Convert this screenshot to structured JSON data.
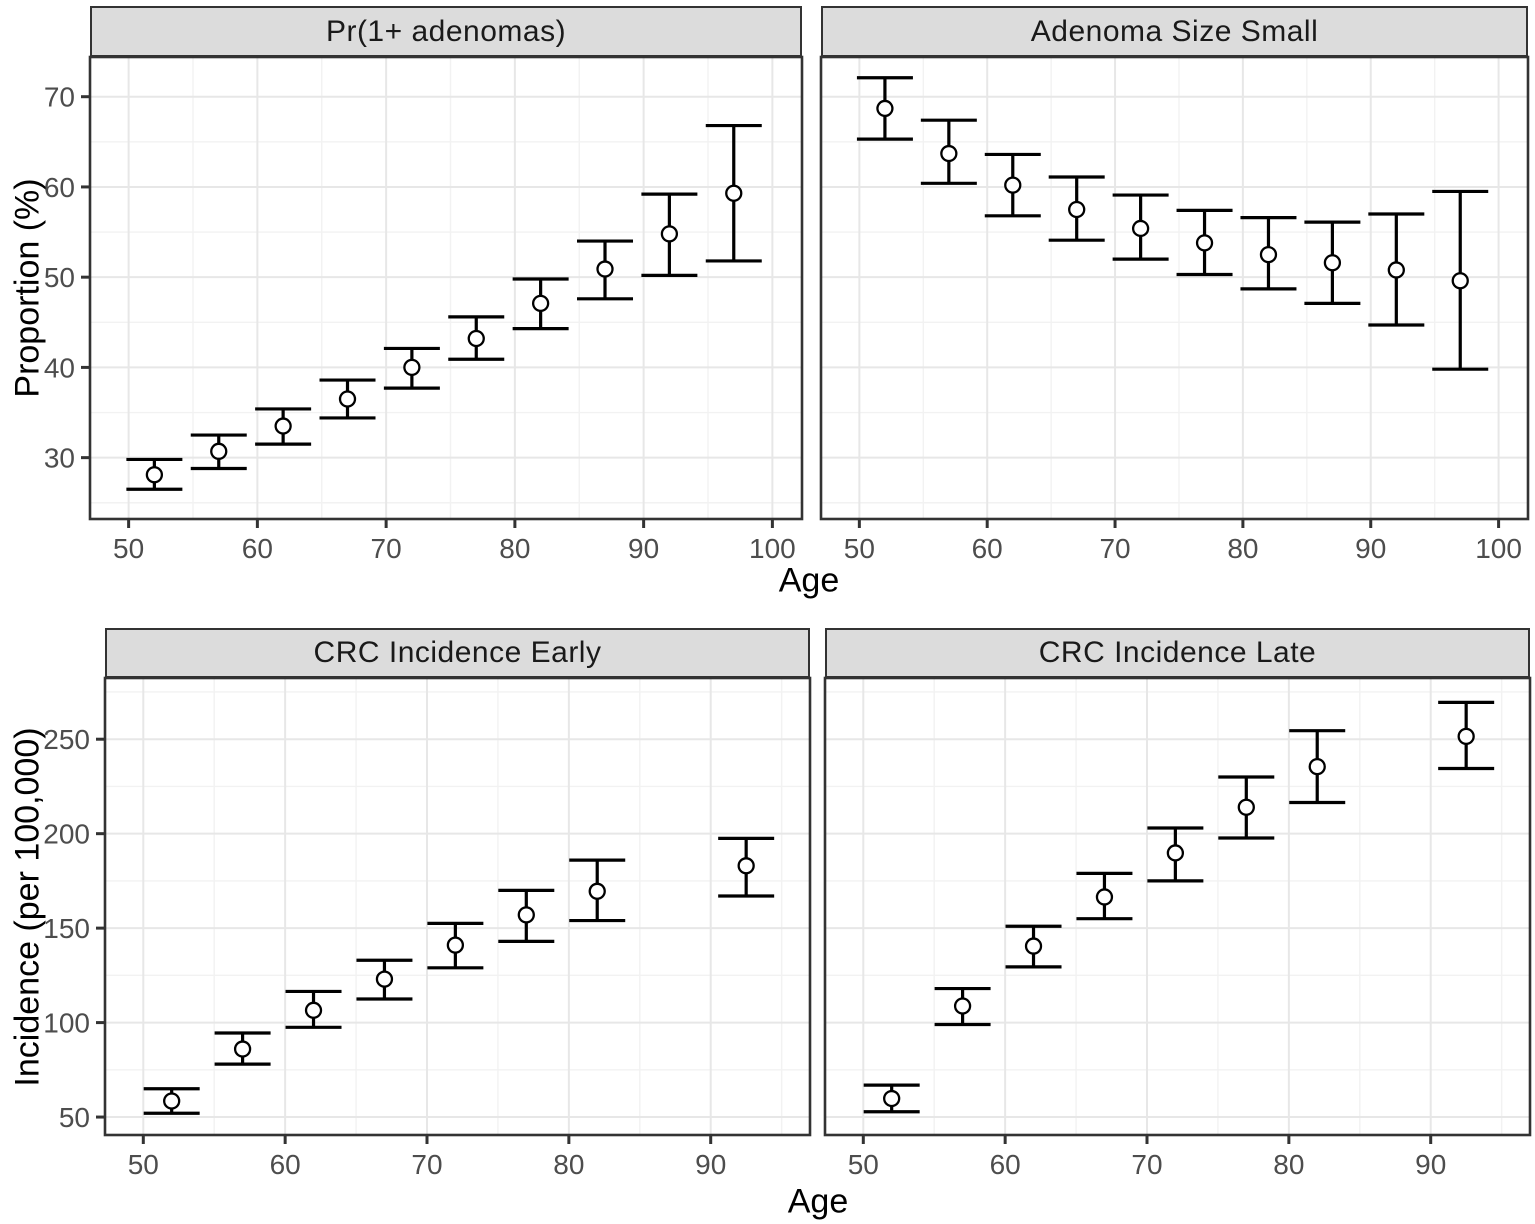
{
  "figure": {
    "xlabel": "Age",
    "y_label_top": "Proportion (%)",
    "y_label_bottom": "Incidence (per 100,000)"
  },
  "colors": {
    "strip_bg": "#dcdcdc",
    "strip_border": "#333333",
    "panel_bg": "#ffffff",
    "panel_border": "#333333",
    "grid_major": "#e7e7e7",
    "grid_minor": "#f2f2f2",
    "errorbar": "#000000",
    "point_stroke": "#000000",
    "point_fill": "#ffffff",
    "tick": "#333333",
    "tick_label": "#4d4d4d"
  },
  "chart_data": [
    {
      "type": "scatter",
      "title": "Pr(1+ adenomas)",
      "ylabel": "Proportion (%)",
      "xlabel": "Age",
      "x": [
        52,
        57,
        62,
        67,
        72,
        77,
        82,
        87,
        92,
        97
      ],
      "y": [
        28.1,
        30.7,
        33.5,
        36.5,
        40.0,
        43.2,
        47.1,
        50.9,
        54.8,
        59.3
      ],
      "ci_low": [
        26.5,
        28.8,
        31.5,
        34.4,
        37.7,
        40.9,
        44.3,
        47.6,
        50.2,
        51.8
      ],
      "ci_high": [
        29.8,
        32.5,
        35.4,
        38.6,
        42.1,
        45.6,
        49.8,
        54.0,
        59.2,
        66.8
      ],
      "xlim": [
        47,
        102.3
      ],
      "ylim": [
        23.2,
        74.4
      ],
      "xticks": [
        50,
        60,
        70,
        80,
        90,
        100
      ],
      "yticks": [
        30,
        40,
        50,
        60,
        70
      ],
      "xticks_minor": [
        55,
        65,
        75,
        85,
        95
      ],
      "yticks_minor": [
        25,
        35,
        45,
        55,
        65
      ],
      "legend": "none",
      "grid": "on"
    },
    {
      "type": "scatter",
      "title": "Adenoma Size Small",
      "ylabel": "",
      "xlabel": "Age",
      "x": [
        52,
        57,
        62,
        67,
        72,
        77,
        82,
        87,
        92,
        97
      ],
      "y": [
        68.7,
        63.7,
        60.2,
        57.5,
        55.4,
        53.8,
        52.5,
        51.6,
        50.8,
        49.6
      ],
      "ci_low": [
        65.3,
        60.4,
        56.8,
        54.1,
        52.0,
        50.3,
        48.7,
        47.1,
        44.7,
        39.8
      ],
      "ci_high": [
        72.1,
        67.4,
        63.6,
        61.1,
        59.1,
        57.4,
        56.6,
        56.1,
        57.0,
        59.5
      ],
      "xlim": [
        47,
        102.3
      ],
      "ylim": [
        23.2,
        74.4
      ],
      "xticks": [
        50,
        60,
        70,
        80,
        90,
        100
      ],
      "yticks": [
        30,
        40,
        50,
        60,
        70
      ],
      "xticks_minor": [
        55,
        65,
        75,
        85,
        95
      ],
      "yticks_minor": [
        25,
        35,
        45,
        55,
        65
      ],
      "legend": "none",
      "grid": "on"
    },
    {
      "type": "scatter",
      "title": "CRC Incidence Early",
      "ylabel": "Incidence (per 100,000)",
      "xlabel": "Age",
      "x": [
        52,
        57,
        62,
        67,
        72,
        77,
        82,
        92.5
      ],
      "y": [
        58.5,
        86,
        106.5,
        123,
        141,
        157,
        169.5,
        183
      ],
      "ci_low": [
        52,
        78,
        97.5,
        112.5,
        129,
        143,
        154,
        167
      ],
      "ci_high": [
        65,
        94.5,
        116.5,
        133,
        152.5,
        170,
        186,
        197.5
      ],
      "xlim": [
        47.3,
        97.0
      ],
      "ylim": [
        40.5,
        282.4
      ],
      "xticks": [
        50,
        60,
        70,
        80,
        90
      ],
      "yticks": [
        50,
        100,
        150,
        200,
        250
      ],
      "xticks_minor": [
        55,
        65,
        75,
        85,
        95
      ],
      "yticks_minor": [
        75,
        125,
        175,
        225,
        275
      ],
      "legend": "none",
      "grid": "on"
    },
    {
      "type": "scatter",
      "title": "CRC Incidence Late",
      "ylabel": "",
      "xlabel": "Age",
      "x": [
        52,
        57,
        62,
        67,
        72,
        77,
        82,
        92.5
      ],
      "y": [
        59.8,
        108.8,
        140.5,
        166.5,
        189.8,
        214,
        235.5,
        251.5
      ],
      "ci_low": [
        52.8,
        99,
        129.5,
        155,
        175,
        197.7,
        216.5,
        234.5
      ],
      "ci_high": [
        66.9,
        118,
        151,
        179,
        203,
        230,
        254.5,
        269.5
      ],
      "xlim": [
        47.3,
        97.0
      ],
      "ylim": [
        40.5,
        282.4
      ],
      "xticks": [
        50,
        60,
        70,
        80,
        90
      ],
      "yticks": [
        50,
        100,
        150,
        200,
        250
      ],
      "xticks_minor": [
        55,
        65,
        75,
        85,
        95
      ],
      "yticks_minor": [
        75,
        125,
        175,
        225,
        275
      ],
      "legend": "none",
      "grid": "on"
    }
  ]
}
